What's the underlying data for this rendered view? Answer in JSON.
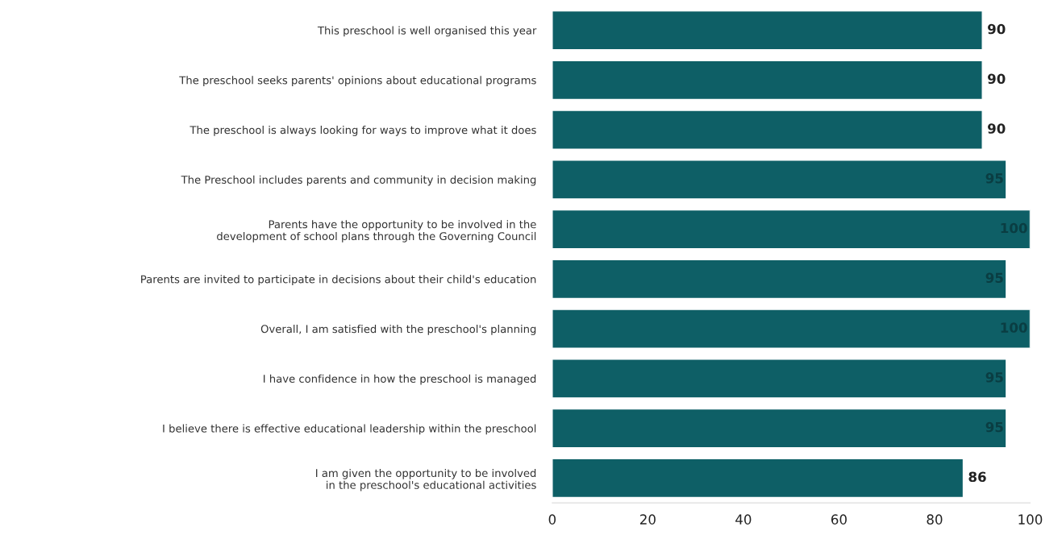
{
  "chart_data": {
    "type": "bar",
    "orientation": "horizontal",
    "categories": [
      "This preschool is well organised this year",
      "The preschool seeks parents' opinions about educational programs",
      "The preschool is always looking for ways to improve what it does",
      "The Preschool includes parents and community in decision making",
      "Parents have the opportunity to be involved in the\ndevelopment of school plans through the Governing Council",
      "Parents are invited to participate in decisions about their child's education",
      "Overall, I am satisfied with the preschool's planning",
      "I have confidence in how the preschool is managed",
      "I believe there is effective educational leadership within the preschool",
      "I am given the opportunity to be involved\nin the preschool's educational activities"
    ],
    "values": [
      90,
      90,
      90,
      95,
      100,
      95,
      100,
      95,
      95,
      86
    ],
    "color": "#0e5f66",
    "xlim": [
      0,
      100
    ],
    "xticks": [
      0,
      20,
      40,
      60,
      80,
      100
    ],
    "data_labels": true,
    "grid": false,
    "legend": false
  }
}
